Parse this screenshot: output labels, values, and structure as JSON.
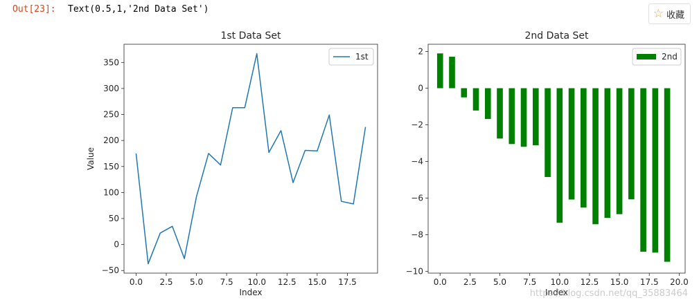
{
  "cell": {
    "prompt": "Out[23]:",
    "output": "Text(0.5,1,'2nd Data Set')"
  },
  "toolbar": {
    "favorite_label": "收藏",
    "favorite_icon": "star-outline-icon"
  },
  "watermark": "https://blog.csdn.net/qq_35883464",
  "chart_data": [
    {
      "type": "line",
      "title": "1st Data Set",
      "xlabel": "Index",
      "ylabel": "Value",
      "xlim": [
        -1,
        20
      ],
      "ylim": [
        -55,
        385
      ],
      "xticks": [
        0.0,
        2.5,
        5.0,
        7.5,
        10.0,
        12.5,
        15.0,
        17.5
      ],
      "xtick_labels": [
        "0.0",
        "2.5",
        "5.0",
        "7.5",
        "10.0",
        "12.5",
        "15.0",
        "17.5"
      ],
      "yticks": [
        -50,
        0,
        50,
        100,
        150,
        200,
        250,
        300,
        350
      ],
      "ytick_labels": [
        "−50",
        "0",
        "50",
        "100",
        "150",
        "200",
        "250",
        "300",
        "350"
      ],
      "legend_position": "top-right",
      "series": [
        {
          "name": "1st",
          "color": "#1f77b4",
          "x": [
            0,
            1,
            2,
            3,
            4,
            5,
            6,
            7,
            8,
            9,
            10,
            11,
            12,
            13,
            14,
            15,
            16,
            17,
            18,
            19
          ],
          "values": [
            175,
            -37,
            22,
            35,
            -27,
            92,
            175,
            153,
            263,
            263,
            367,
            177,
            219,
            119,
            181,
            180,
            249,
            83,
            78,
            226
          ]
        }
      ]
    },
    {
      "type": "bar",
      "title": "2nd Data Set",
      "xlabel": "Index",
      "ylabel": "",
      "xlim": [
        -1,
        20.5
      ],
      "ylim": [
        -10.1,
        2.4
      ],
      "xticks": [
        0.0,
        2.5,
        5.0,
        7.5,
        10.0,
        12.5,
        15.0,
        17.5,
        20.0
      ],
      "xtick_labels": [
        "0.0",
        "2.5",
        "5.0",
        "7.5",
        "10.0",
        "12.5",
        "15.0",
        "17.5",
        "20.0"
      ],
      "yticks": [
        2,
        0,
        -2,
        -4,
        -6,
        -8,
        -10
      ],
      "ytick_labels": [
        "2",
        "0",
        "−2",
        "−4",
        "−6",
        "−8",
        "−10"
      ],
      "legend_position": "top-right",
      "series": [
        {
          "name": "2nd",
          "color": "#008000",
          "x": [
            0,
            1,
            2,
            3,
            4,
            5,
            6,
            7,
            8,
            9,
            10,
            11,
            12,
            13,
            14,
            15,
            16,
            17,
            18,
            19
          ],
          "values": [
            1.9,
            1.72,
            -0.5,
            -1.22,
            -1.68,
            -2.75,
            -3.05,
            -3.2,
            -3.12,
            -4.85,
            -7.35,
            -6.08,
            -6.52,
            -7.43,
            -7.08,
            -6.88,
            -6.07,
            -8.93,
            -8.98,
            -9.48
          ]
        }
      ]
    }
  ]
}
